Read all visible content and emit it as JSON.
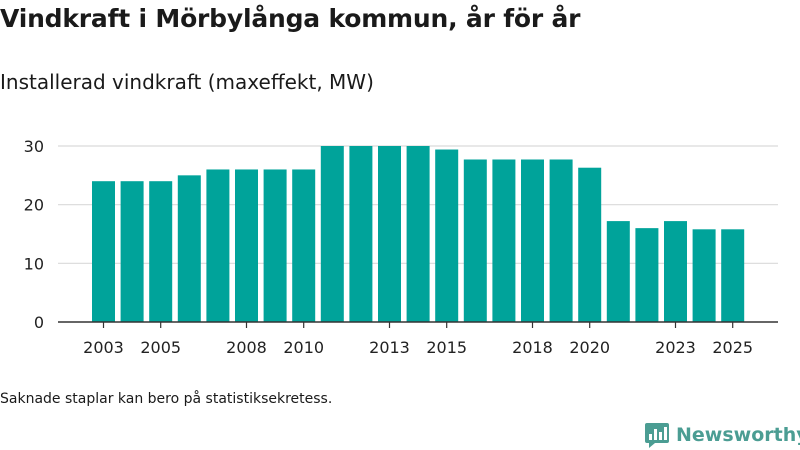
{
  "chart_data": {
    "type": "bar",
    "title": "Vindkraft i Mörbylånga kommun, år för år",
    "subtitle": "Installerad vindkraft (maxeffekt, MW)",
    "categories": [
      "2003",
      "2004",
      "2005",
      "2006",
      "2007",
      "2008",
      "2009",
      "2010",
      "2011",
      "2012",
      "2013",
      "2014",
      "2015",
      "2016",
      "2017",
      "2018",
      "2019",
      "2020",
      "2021",
      "2022",
      "2023",
      "2024",
      "2025"
    ],
    "values": [
      24,
      24,
      24,
      25,
      26,
      26,
      26,
      26,
      30,
      30,
      30,
      30,
      29.4,
      27.7,
      27.7,
      27.7,
      27.7,
      26.3,
      17.2,
      16,
      17.2,
      15.8,
      15.8
    ],
    "x_tick_labels": [
      "2003",
      "2005",
      "2008",
      "2010",
      "2013",
      "2015",
      "2018",
      "2020",
      "2023",
      "2025"
    ],
    "y_ticks": [
      0,
      10,
      20,
      30
    ],
    "ylim": [
      0,
      30
    ],
    "xlabel": "",
    "ylabel": "",
    "bar_color": "#00a39a",
    "grid": true
  },
  "footer": {
    "note": "Saknade staplar kan bero på statistiksekretess.",
    "brand": "Newsworthy"
  },
  "colors": {
    "brand": "#4b9d93",
    "grid": "#d9d9d9",
    "axis": "#333333"
  }
}
